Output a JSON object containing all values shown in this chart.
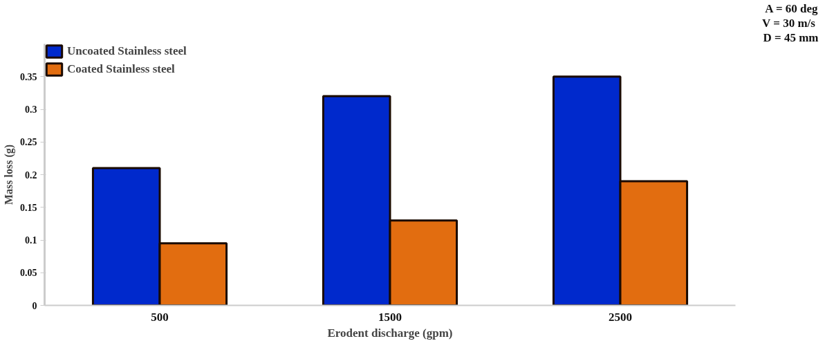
{
  "chart_data": {
    "type": "bar",
    "xlabel": "Erodent discharge (gpm)",
    "ylabel": "Mass loss (g)",
    "categories": [
      "500",
      "1500",
      "2500"
    ],
    "series": [
      {
        "name": "Uncoated Stainless steel",
        "color": "#0029cc",
        "values": [
          0.21,
          0.32,
          0.35
        ]
      },
      {
        "name": "Coated Stainless steel",
        "color": "#e26d10",
        "values": [
          0.095,
          0.13,
          0.19
        ]
      }
    ],
    "ylim": [
      0,
      0.4
    ],
    "yticks": [
      0,
      0.05,
      0.1,
      0.15,
      0.2,
      0.25,
      0.3,
      0.35
    ],
    "grid": false,
    "legend": "top left",
    "annotations": [
      "A = 60 deg",
      "V =  30 m/s",
      "D = 45 mm"
    ]
  }
}
